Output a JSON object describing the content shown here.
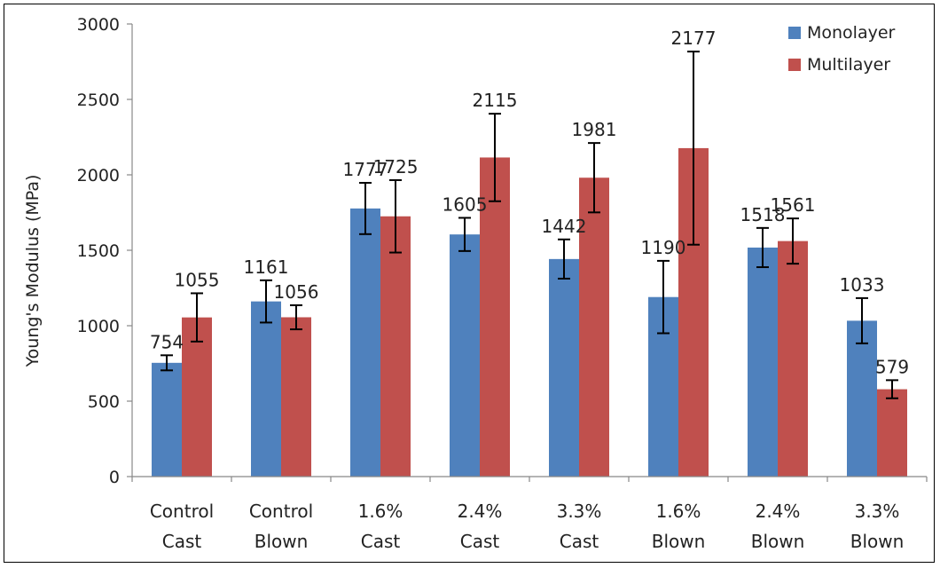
{
  "chart_data": {
    "type": "bar",
    "title": "",
    "xlabel": "",
    "ylabel": "Young's Modulus (MPa)",
    "ylim": [
      0,
      3000
    ],
    "yticks": [
      0,
      500,
      1000,
      1500,
      2000,
      2500,
      3000
    ],
    "grid": false,
    "legend_position": "top-right",
    "categories": [
      [
        "Control",
        "Cast"
      ],
      [
        "Control",
        "Blown"
      ],
      [
        "1.6%",
        "Cast"
      ],
      [
        "2.4%",
        "Cast"
      ],
      [
        "3.3%",
        "Cast"
      ],
      [
        "1.6%",
        "Blown"
      ],
      [
        "2.4%",
        "Blown"
      ],
      [
        "3.3%",
        "Blown"
      ]
    ],
    "series": [
      {
        "name": "Monolayer",
        "color": "#4F81BD",
        "values": [
          754,
          1161,
          1777,
          1605,
          1442,
          1190,
          1518,
          1033
        ],
        "error": [
          50,
          140,
          170,
          110,
          130,
          240,
          130,
          150
        ]
      },
      {
        "name": "Multilayer",
        "color": "#C0504D",
        "values": [
          1055,
          1056,
          1725,
          2115,
          1981,
          2177,
          1561,
          579
        ],
        "error": [
          160,
          80,
          240,
          290,
          230,
          640,
          150,
          60
        ]
      }
    ]
  }
}
